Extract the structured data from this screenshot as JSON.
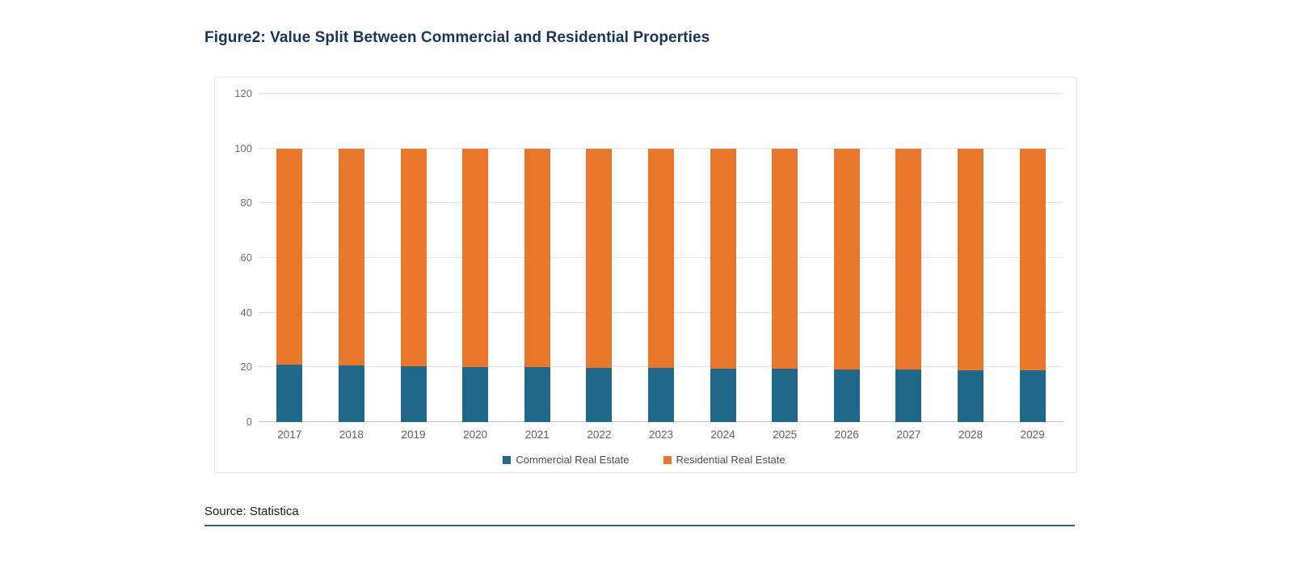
{
  "figure": {
    "title": "Figure2: Value Split Between Commercial and Residential Properties",
    "source": "Source: Statistica"
  },
  "chart_data": {
    "type": "bar",
    "stacked": true,
    "title": "Figure2: Value Split Between Commercial and Residential Properties",
    "categories": [
      "2017",
      "2018",
      "2019",
      "2020",
      "2021",
      "2022",
      "2023",
      "2024",
      "2025",
      "2026",
      "2027",
      "2028",
      "2029"
    ],
    "series": [
      {
        "name": "Commercial Real Estate",
        "color": "#1f688a",
        "values": [
          21,
          20.6,
          20.4,
          20.2,
          20,
          19.9,
          19.8,
          19.6,
          19.4,
          19.3,
          19.2,
          19,
          18.9
        ]
      },
      {
        "name": "Residential Real Estate",
        "color": "#e8772c",
        "values": [
          79,
          79.4,
          79.6,
          79.8,
          80,
          80.1,
          80.2,
          80.4,
          80.6,
          80.7,
          80.8,
          81,
          81.1
        ]
      }
    ],
    "xlabel": "",
    "ylabel": "",
    "ylim": [
      0,
      120
    ],
    "yticks": [
      0,
      20,
      40,
      60,
      80,
      100,
      120
    ],
    "grid": true,
    "legend_position": "bottom"
  },
  "colors": {
    "title_text": "#16365c",
    "commercial": "#1f688a",
    "residential": "#e8772c",
    "gridline": "#e4e4e4",
    "axis_text": "#6f6f6f",
    "source_rule": "#2c5f8a"
  }
}
